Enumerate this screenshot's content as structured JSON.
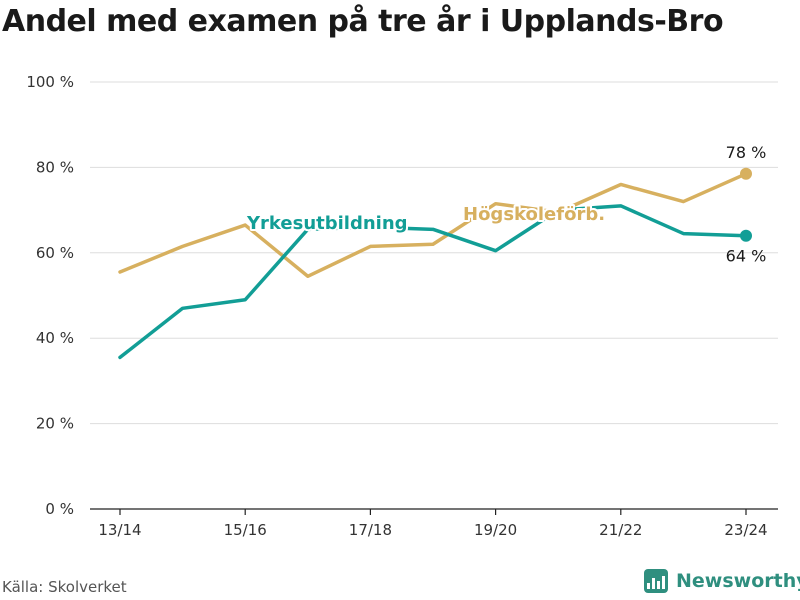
{
  "title": "Andel med examen på tre år i Upplands-Bro",
  "source": "Källa: Skolverket",
  "brand": {
    "name": "Newsworthy",
    "icon": "bar-chart-icon"
  },
  "chart_data": {
    "type": "line",
    "title": "Andel med examen på tre år i Upplands-Bro",
    "x": [
      "13/14",
      "14/15",
      "15/16",
      "16/17",
      "17/18",
      "18/19",
      "19/20",
      "20/21",
      "21/22",
      "22/23",
      "23/24"
    ],
    "x_ticks": [
      "13/14",
      "15/16",
      "17/18",
      "19/20",
      "21/22",
      "23/24"
    ],
    "y_ticks": [
      "0 %",
      "20 %",
      "40 %",
      "60 %",
      "80 %",
      "100 %"
    ],
    "ylim": [
      0,
      100
    ],
    "grid": true,
    "series": [
      {
        "name": "Yrkesutbildning",
        "color": "#129e96",
        "values": [
          35.5,
          47,
          49,
          65.5,
          66,
          65.5,
          60.5,
          70,
          71,
          64.5,
          64
        ],
        "end_label": "64 %"
      },
      {
        "name": "Högskoleförb.",
        "color": "#d7b05f",
        "values": [
          55.5,
          61.5,
          66.5,
          54.5,
          61.5,
          62,
          71.5,
          69.5,
          76,
          72,
          78.5
        ],
        "end_label": "78 %"
      }
    ]
  }
}
